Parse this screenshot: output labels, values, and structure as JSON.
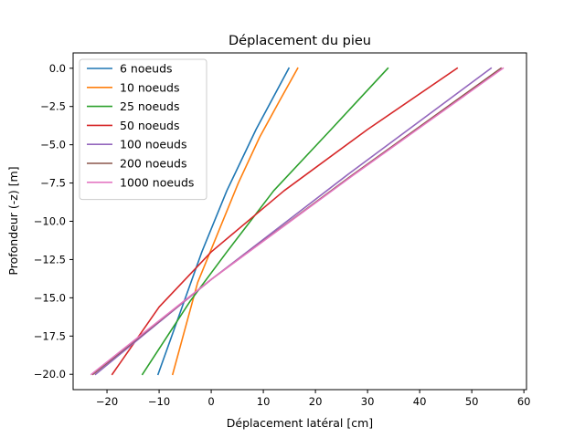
{
  "chart_data": {
    "type": "line",
    "title": "Déplacement du pieu",
    "xlabel": "Déplacement latéral [cm]",
    "ylabel": "Profondeur (-z) [m]",
    "xlim": [
      -26.5,
      60.5
    ],
    "ylim": [
      -21.0,
      1.0
    ],
    "xticks": [
      -20,
      -10,
      0,
      10,
      20,
      30,
      40,
      50,
      60
    ],
    "xtick_labels": [
      "−20",
      "−10",
      "0",
      "10",
      "20",
      "30",
      "40",
      "50",
      "60"
    ],
    "yticks": [
      0.0,
      -2.5,
      -5.0,
      -7.5,
      -10.0,
      -12.5,
      -15.0,
      -17.5,
      -20.0
    ],
    "ytick_labels": [
      "0.0",
      "−2.5",
      "−5.0",
      "−7.5",
      "−10.0",
      "−12.5",
      "−15.0",
      "−17.5",
      "−20.0"
    ],
    "grid": false,
    "legend_position": "upper-left",
    "series": [
      {
        "name": "6 noeuds",
        "color": "#1f77b4",
        "x": [
          14.9,
          8.6,
          3.0,
          -1.8,
          -6.0,
          -10.2
        ],
        "y": [
          0.0,
          -4.0,
          -8.0,
          -12.0,
          -16.0,
          -20.0
        ]
      },
      {
        "name": "10 noeuds",
        "color": "#ff7f0e",
        "x": [
          16.6,
          13.0,
          9.3,
          5.2,
          1.0,
          -2.6,
          -7.4
        ],
        "y": [
          0.0,
          -2.2,
          -4.5,
          -7.5,
          -11.0,
          -14.0,
          -20.0
        ]
      },
      {
        "name": "25 noeuds",
        "color": "#2ca02c",
        "x": [
          33.9,
          23.0,
          12.0,
          3.0,
          -4.0,
          -13.2
        ],
        "y": [
          0.0,
          -4.0,
          -8.0,
          -12.0,
          -15.2,
          -20.0
        ]
      },
      {
        "name": "50 noeuds",
        "color": "#d62728",
        "x": [
          47.2,
          30.0,
          14.0,
          0.0,
          -10.0,
          -19.0
        ],
        "y": [
          0.0,
          -4.0,
          -8.0,
          -12.0,
          -15.6,
          -20.0
        ]
      },
      {
        "name": "100 noeuds",
        "color": "#9467bd",
        "x": [
          53.7,
          26.0,
          0.0,
          -22.2
        ],
        "y": [
          0.0,
          -7.0,
          -13.8,
          -20.0
        ]
      },
      {
        "name": "200 noeuds",
        "color": "#8c564b",
        "x": [
          55.6,
          27.0,
          0.0,
          -22.7
        ],
        "y": [
          0.0,
          -7.0,
          -13.8,
          -20.0
        ]
      },
      {
        "name": "1000 noeuds",
        "color": "#e377c2",
        "x": [
          56.0,
          27.2,
          0.0,
          -23.0
        ],
        "y": [
          0.0,
          -7.0,
          -13.8,
          -20.0
        ]
      }
    ]
  }
}
